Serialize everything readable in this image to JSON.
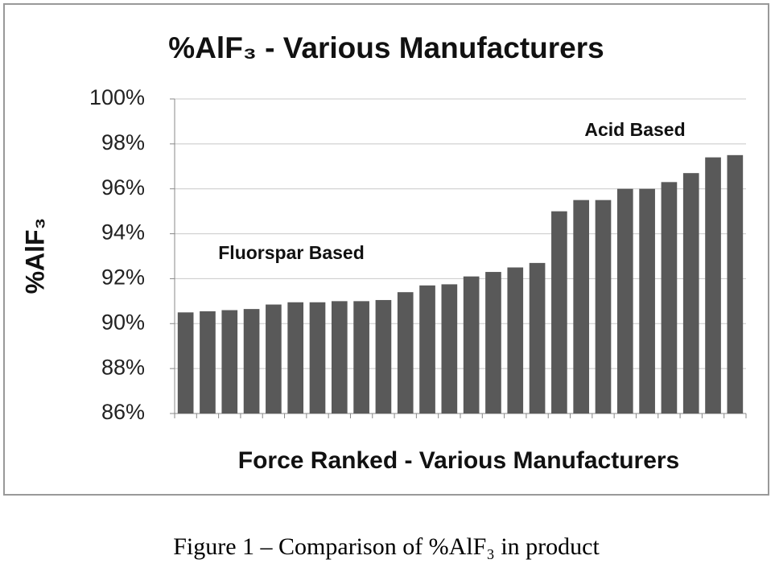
{
  "chart_data": {
    "type": "bar",
    "title": "%AlF₃ - Various Manufacturers",
    "y_label": "%AlF₃",
    "x_label": "Force Ranked - Various Manufacturers",
    "annotations": [
      "Fluorspar Based",
      "Acid Based"
    ],
    "caption": "Figure 1 –  Comparison of %AlF₃ in product",
    "categories": [
      null,
      null,
      null,
      null,
      null,
      null,
      null,
      null,
      null,
      null,
      null,
      null,
      null,
      null,
      null,
      null,
      null,
      null,
      null,
      null,
      null,
      null,
      null,
      null,
      null,
      null
    ],
    "values": [
      90.5,
      90.55,
      90.6,
      90.65,
      90.85,
      90.95,
      90.95,
      91.0,
      91.0,
      91.05,
      91.4,
      91.7,
      91.75,
      92.1,
      92.3,
      92.5,
      92.7,
      95.0,
      95.5,
      95.5,
      96.0,
      96.0,
      96.3,
      96.7,
      97.4,
      97.5
    ],
    "color": "#595959",
    "ylim": [
      86,
      100
    ],
    "yticks": [
      {
        "value": 86,
        "label": "86%"
      },
      {
        "value": 88,
        "label": "88%"
      },
      {
        "value": 90,
        "label": "90%"
      },
      {
        "value": 92,
        "label": "92%"
      },
      {
        "value": 94,
        "label": "94%"
      },
      {
        "value": 96,
        "label": "96%"
      },
      {
        "value": 98,
        "label": "98%"
      },
      {
        "value": 100,
        "label": "100%"
      }
    ],
    "grid": true
  }
}
